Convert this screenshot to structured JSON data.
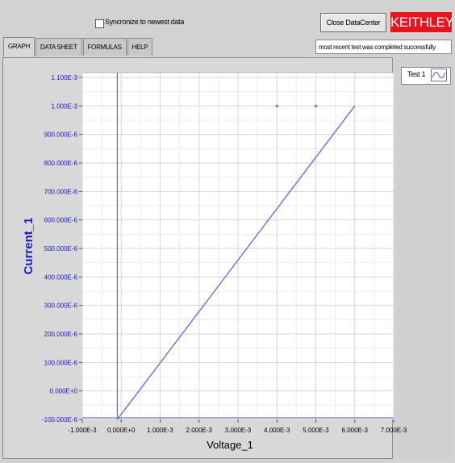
{
  "header": {
    "sync_label": "Syncronize to newest data",
    "close_label": "Close DataCenter",
    "logo_text": "KEITHLEY",
    "status_text": "most recent test was completed successfully"
  },
  "tabs": [
    {
      "label": "GRAPH",
      "active": true
    },
    {
      "label": "DATA SHEET",
      "active": false
    },
    {
      "label": "FORMULAS",
      "active": false
    },
    {
      "label": "HELP",
      "active": false
    }
  ],
  "legend": {
    "label": "Test 1",
    "icon": "waveform-icon"
  },
  "colors": {
    "series": "#6670d8",
    "axis_label": "#1a1acc",
    "logo": "#e8141e"
  },
  "chart_data": {
    "type": "line",
    "xlabel": "Voltage_1",
    "ylabel": "Current_1",
    "xlim": [
      -0.001,
      0.007
    ],
    "ylim": [
      -0.0001,
      0.0011
    ],
    "xticks": [
      "-1.000E-3",
      "0.000E+0",
      "1.000E-3",
      "2.000E-3",
      "3.000E-3",
      "4.000E-3",
      "5.000E-3",
      "6.000E-3",
      "7.000E-3"
    ],
    "xtick_values": [
      -0.001,
      0,
      0.001,
      0.002,
      0.003,
      0.004,
      0.005,
      0.006,
      0.007
    ],
    "yticks": [
      "-100.000E-6",
      "0.000E+0",
      "100.000E-6",
      "200.000E-6",
      "300.000E-6",
      "400.000E-6",
      "500.000E-6",
      "600.000E-6",
      "700.000E-6",
      "800.000E-6",
      "900.000E-6",
      "1.000E-3",
      "1.100E-3"
    ],
    "ytick_values": [
      -0.0001,
      0,
      0.0001,
      0.0002,
      0.0003,
      0.0004,
      0.0005,
      0.0006,
      0.0007,
      0.0008,
      0.0009,
      0.001,
      0.0011
    ],
    "grid": true,
    "series": [
      {
        "x": [
          -0.0001,
          0.006
        ],
        "y": [
          -0.0001,
          0.001
        ]
      }
    ],
    "points": [
      {
        "x": 0.004,
        "y": 0.001
      },
      {
        "x": 0.005,
        "y": 0.001
      }
    ]
  }
}
